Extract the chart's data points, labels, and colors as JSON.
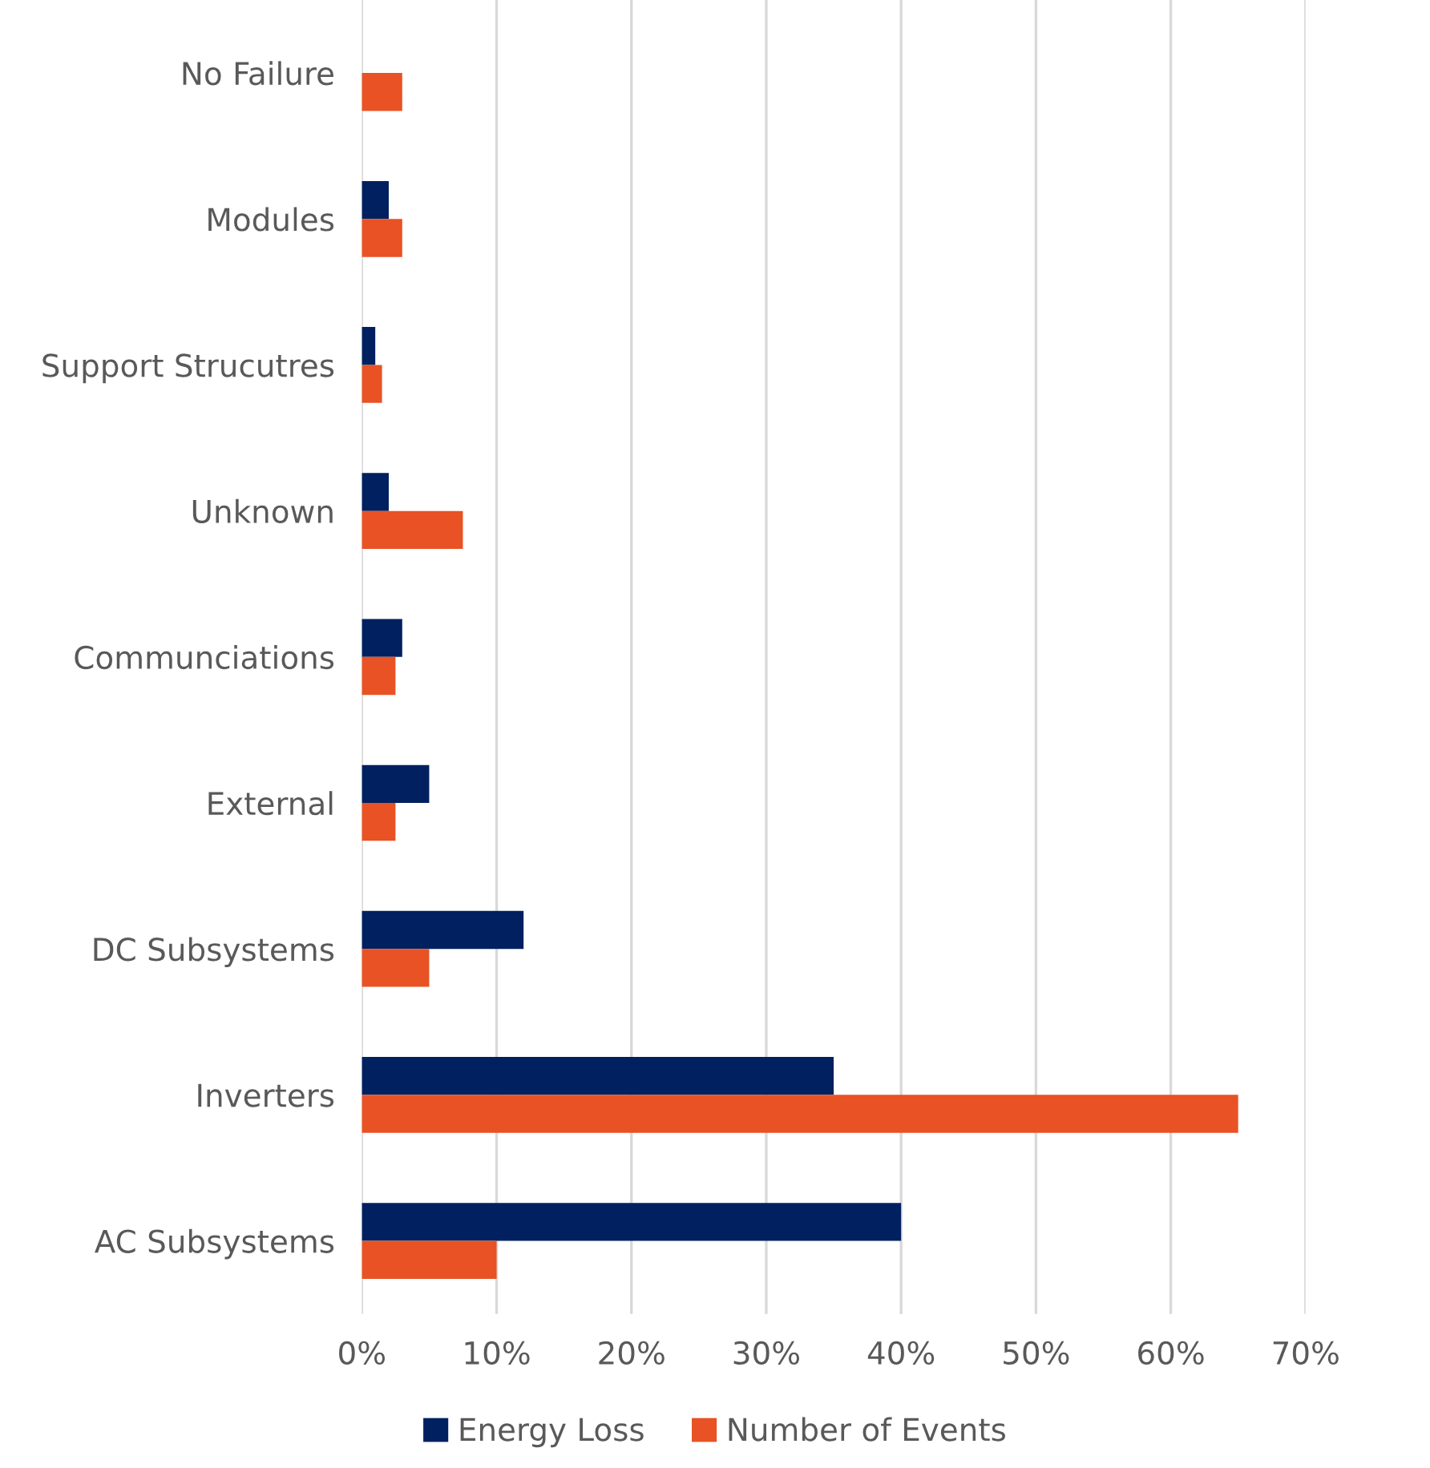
{
  "chart_data": {
    "type": "bar",
    "orientation": "horizontal",
    "categories": [
      "No Failure",
      "Modules",
      "Support Strucutres",
      "Unknown",
      "Communciations",
      "External",
      "DC Subsystems",
      "Inverters",
      "AC Subsystems"
    ],
    "series": [
      {
        "name": "Energy Loss",
        "color": "#002060",
        "values": [
          null,
          2,
          1,
          2,
          3,
          5,
          12,
          35,
          40
        ]
      },
      {
        "name": "Number of Events",
        "color": "#e85224",
        "values": [
          3,
          3,
          1.5,
          7.5,
          2.5,
          2.5,
          5,
          65,
          10
        ]
      }
    ],
    "xlim": [
      0,
      70
    ],
    "xticks": [
      {
        "value": 0,
        "label": "0%"
      },
      {
        "value": 10,
        "label": "10%"
      },
      {
        "value": 20,
        "label": "20%"
      },
      {
        "value": 30,
        "label": "30%"
      },
      {
        "value": 40,
        "label": "40%"
      },
      {
        "value": 50,
        "label": "50%"
      },
      {
        "value": 60,
        "label": "60%"
      },
      {
        "value": 70,
        "label": "70%"
      }
    ],
    "grid": "x",
    "legend": "bottom"
  }
}
